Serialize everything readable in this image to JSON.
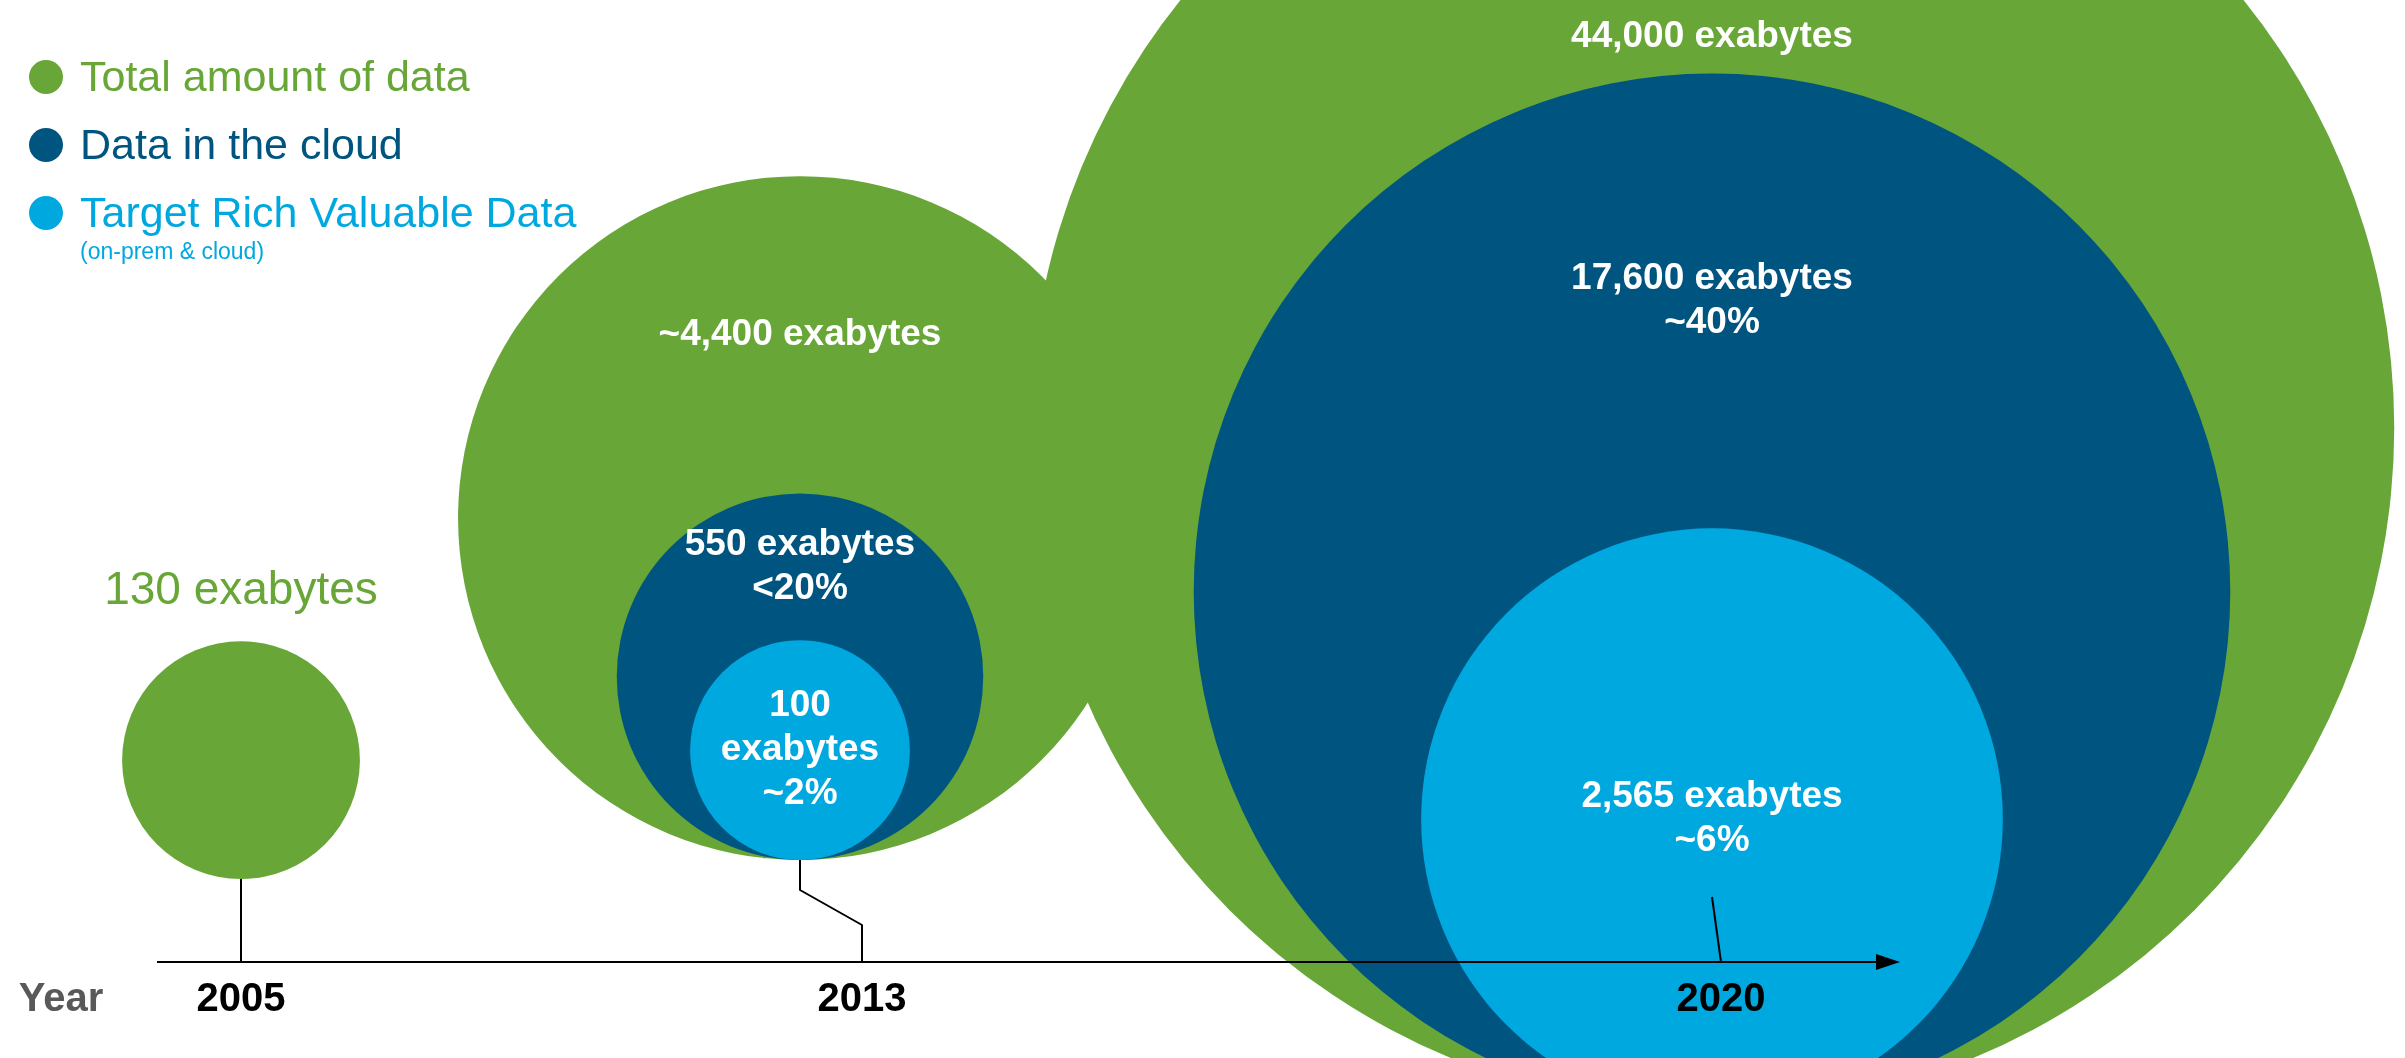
{
  "chart_data": {
    "type": "other",
    "xlabel": "Year",
    "categories": [
      "2005",
      "2013",
      "2020"
    ],
    "legend": "top left",
    "annotations": [
      "(on-prem & cloud)"
    ],
    "series": [
      {
        "name": "Total amount of data",
        "color": "#67a637",
        "values": [
          130,
          4400,
          44000
        ],
        "value_labels": [
          "130 exabytes",
          "~4,400 exabytes",
          "44,000 exabytes"
        ]
      },
      {
        "name": "Data in the cloud",
        "color": "#005580",
        "values": [
          null,
          550,
          17600
        ],
        "value_labels": [
          null,
          "550 exabytes\n<20%",
          "17,600 exabytes\n~40%"
        ]
      },
      {
        "name": "Target Rich Valuable Data",
        "color": "#00a8e0",
        "values": [
          null,
          100,
          2565
        ],
        "value_labels": [
          null,
          "100\nexabytes\n~2%",
          "2,565 exabytes\n~6%"
        ]
      }
    ]
  }
}
